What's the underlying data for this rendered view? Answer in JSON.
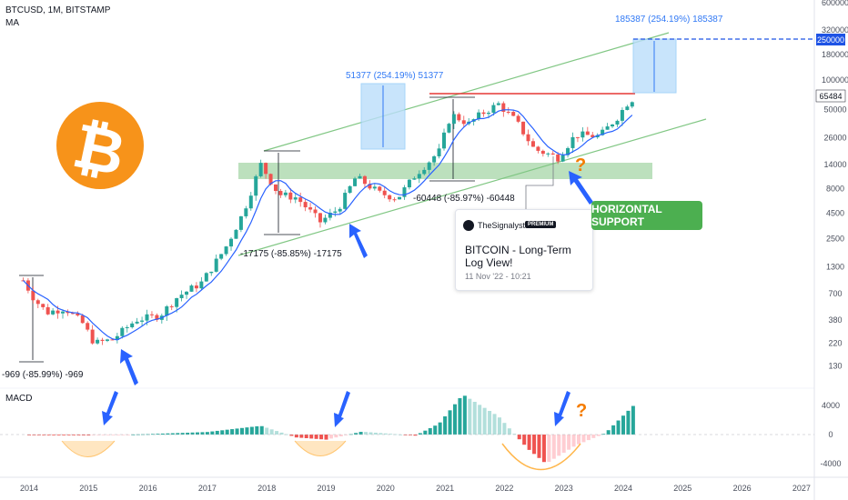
{
  "header": {
    "symbol": "BTCUSD, 1M, BITSTAMP",
    "indicator": "MA"
  },
  "macd_label": "MACD",
  "idea_card": {
    "author": "TheSignalyst",
    "badge": "PREMIUM",
    "title": "BITCOIN - Long-Term Log View!",
    "date": "11 Nov '22 - 10:21"
  },
  "support_label": "HORIZONTAL SUPPORT",
  "annotations": {
    "drop_2014": "-969 (-85.99%) -969",
    "drop_2018": "-17175 (-85.85%) -17175",
    "drop_2022": "-60448 (-85.97%) -60448",
    "rise_2020": "51377 (254.19%) 51377",
    "rise_2024": "185387 (254.19%) 185387",
    "question_mark": "?"
  },
  "colors": {
    "up": "#26a69a",
    "down": "#ef5350",
    "ma": "#2962ff",
    "channel": "#81c784",
    "resistance": "#e53935",
    "support_zone": "#a5d6a7",
    "box": "#bbdefb",
    "arrow": "#2962ff",
    "question": "#f57c00",
    "bitcoin": "#f7931a"
  },
  "chart_data": {
    "type": "candlestick",
    "symbol": "BTCUSD",
    "timeframe": "1M",
    "scale": "log",
    "price_axis": {
      "ticks": [
        130,
        220,
        380,
        700,
        1300,
        2500,
        4500,
        8000,
        14000,
        26000,
        50000,
        100000,
        180000,
        320000,
        600000
      ],
      "ylim": [
        90,
        600000
      ],
      "current_price": 65484,
      "target_price": 250000
    },
    "time_axis": {
      "ticks": [
        "2014",
        "2015",
        "2016",
        "2017",
        "2018",
        "2019",
        "2020",
        "2021",
        "2022",
        "2023",
        "2024",
        "2025",
        "2026",
        "2027"
      ]
    },
    "macd_axis": {
      "ticks": [
        4000,
        0,
        -4000
      ]
    },
    "monthly_close": [
      {
        "x": 2013.9,
        "y": 950
      },
      {
        "x": 2014.1,
        "y": 600
      },
      {
        "x": 2014.3,
        "y": 450
      },
      {
        "x": 2014.6,
        "y": 500
      },
      {
        "x": 2014.9,
        "y": 350
      },
      {
        "x": 2015.1,
        "y": 220
      },
      {
        "x": 2015.4,
        "y": 240
      },
      {
        "x": 2015.8,
        "y": 380
      },
      {
        "x": 2016.2,
        "y": 420
      },
      {
        "x": 2016.5,
        "y": 650
      },
      {
        "x": 2016.9,
        "y": 900
      },
      {
        "x": 2017.3,
        "y": 2000
      },
      {
        "x": 2017.6,
        "y": 4500
      },
      {
        "x": 2017.9,
        "y": 14000
      },
      {
        "x": 2018.2,
        "y": 7000
      },
      {
        "x": 2018.5,
        "y": 6500
      },
      {
        "x": 2018.9,
        "y": 3700
      },
      {
        "x": 2019.2,
        "y": 5000
      },
      {
        "x": 2019.5,
        "y": 10500
      },
      {
        "x": 2019.9,
        "y": 7200
      },
      {
        "x": 2020.2,
        "y": 6400
      },
      {
        "x": 2020.5,
        "y": 11000
      },
      {
        "x": 2020.9,
        "y": 19000
      },
      {
        "x": 2021.1,
        "y": 45000
      },
      {
        "x": 2021.4,
        "y": 36000
      },
      {
        "x": 2021.6,
        "y": 45000
      },
      {
        "x": 2021.9,
        "y": 57000
      },
      {
        "x": 2022.2,
        "y": 38000
      },
      {
        "x": 2022.5,
        "y": 20000
      },
      {
        "x": 2022.9,
        "y": 16500
      },
      {
        "x": 2023.2,
        "y": 28000
      },
      {
        "x": 2023.6,
        "y": 27000
      },
      {
        "x": 2023.9,
        "y": 42000
      },
      {
        "x": 2024.1,
        "y": 62000
      },
      {
        "x": 2024.2,
        "y": 65484
      }
    ],
    "macd_histogram": [
      {
        "x": 2014.0,
        "y": -50
      },
      {
        "x": 2015.0,
        "y": -120
      },
      {
        "x": 2016.0,
        "y": 60
      },
      {
        "x": 2017.0,
        "y": 350
      },
      {
        "x": 2017.9,
        "y": 1200
      },
      {
        "x": 2018.5,
        "y": -400
      },
      {
        "x": 2019.0,
        "y": -700
      },
      {
        "x": 2019.6,
        "y": 400
      },
      {
        "x": 2020.5,
        "y": -150
      },
      {
        "x": 2020.9,
        "y": 1500
      },
      {
        "x": 2021.3,
        "y": 5500
      },
      {
        "x": 2021.9,
        "y": 2500
      },
      {
        "x": 2022.4,
        "y": -2000
      },
      {
        "x": 2022.7,
        "y": -4000
      },
      {
        "x": 2023.2,
        "y": -1500
      },
      {
        "x": 2023.7,
        "y": 200
      },
      {
        "x": 2024.2,
        "y": 4200
      }
    ]
  }
}
